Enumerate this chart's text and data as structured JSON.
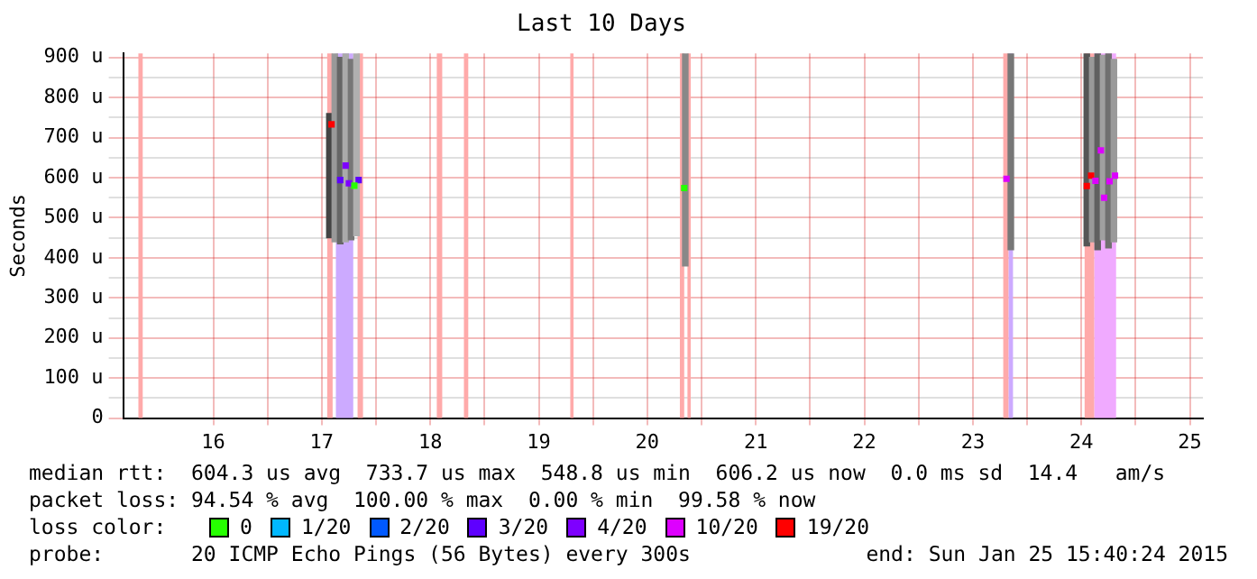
{
  "chart_data": {
    "type": "scatter",
    "title": "Last 10 Days",
    "ylabel": "Seconds",
    "legend_title": "loss color:",
    "legend": "bottom",
    "grid": true,
    "marker": "square",
    "xlim": [
      15.17,
      25.12
    ],
    "xticks": [
      16,
      {
        "value": 16.5,
        "label": null
      },
      17,
      {
        "value": 17.5,
        "label": null
      },
      18,
      {
        "value": 18.5,
        "label": null
      },
      19,
      {
        "value": 19.5,
        "label": null
      },
      20,
      {
        "value": 20.5,
        "label": null
      },
      21,
      {
        "value": 21.5,
        "label": null
      },
      22,
      {
        "value": 22.5,
        "label": null
      },
      23,
      {
        "value": 23.5,
        "label": null
      },
      24,
      {
        "value": 24.5,
        "label": null
      },
      25
    ],
    "ylim": [
      0,
      910
    ],
    "yticks": [
      {
        "value": 0,
        "label": "0"
      },
      {
        "value": 50,
        "label": null
      },
      {
        "value": 100,
        "label": "100 u"
      },
      {
        "value": 150,
        "label": null
      },
      {
        "value": 200,
        "label": "200 u"
      },
      {
        "value": 250,
        "label": null
      },
      {
        "value": 300,
        "label": "300 u"
      },
      {
        "value": 350,
        "label": null
      },
      {
        "value": 400,
        "label": "400 u"
      },
      {
        "value": 450,
        "label": null
      },
      {
        "value": 500,
        "label": "500 u"
      },
      {
        "value": 550,
        "label": null
      },
      {
        "value": 600,
        "label": "600 u"
      },
      {
        "value": 650,
        "label": null
      },
      {
        "value": 700,
        "label": "700 u"
      },
      {
        "value": 750,
        "label": null
      },
      {
        "value": 800,
        "label": "800 u"
      },
      {
        "value": 850,
        "label": null
      },
      {
        "value": 900,
        "label": "900 u"
      }
    ],
    "bands": [
      {
        "axis": "x",
        "from": 15.31,
        "to": 15.35,
        "color": "#ffaaaa"
      },
      {
        "axis": "x",
        "from": 17.05,
        "to": 17.1,
        "color": "#ffaaaa"
      },
      {
        "axis": "x",
        "from": 17.13,
        "to": 17.29,
        "color": "#ccaaff"
      },
      {
        "axis": "x",
        "from": 17.33,
        "to": 17.38,
        "color": "#ffaaaa"
      },
      {
        "axis": "x",
        "from": 18.06,
        "to": 18.11,
        "color": "#ffaaaa"
      },
      {
        "axis": "x",
        "from": 18.31,
        "to": 18.35,
        "color": "#ffaaaa"
      },
      {
        "axis": "x",
        "from": 19.29,
        "to": 19.32,
        "color": "#ffaaaa"
      },
      {
        "axis": "x",
        "from": 20.3,
        "to": 20.34,
        "color": "#ffaaaa"
      },
      {
        "axis": "x",
        "from": 20.37,
        "to": 20.4,
        "color": "#ffaaaa"
      },
      {
        "axis": "x",
        "from": 23.28,
        "to": 23.33,
        "color": "#ffaaaa"
      },
      {
        "axis": "x",
        "from": 23.33,
        "to": 23.37,
        "color": "#ccaaff"
      },
      {
        "axis": "x",
        "from": 24.03,
        "to": 24.12,
        "color": "#ffaaaa"
      },
      {
        "axis": "x",
        "from": 24.12,
        "to": 24.32,
        "color": "#f0aaff"
      }
    ],
    "series": [
      {
        "type": "bar",
        "colors": [
          "#444444",
          "#999999",
          "#666666",
          "#aaaaaa",
          "#777777",
          "#b0b0b0",
          "#888888",
          "#777777",
          "#555555",
          "#999999",
          "#606060",
          "#a0a0a0",
          "#707070",
          "#9a9a9a"
        ],
        "x": [
          17.07,
          17.12,
          17.17,
          17.22,
          17.27,
          17.32,
          20.35,
          23.35,
          24.05,
          24.1,
          24.15,
          24.2,
          24.25,
          24.3
        ],
        "base": [
          450,
          440,
          435,
          440,
          445,
          455,
          380,
          420,
          430,
          440,
          420,
          445,
          425,
          440
        ],
        "values": [
          310,
          470,
          465,
          470,
          450,
          455,
          530,
          490,
          480,
          460,
          490,
          460,
          485,
          455
        ]
      },
      {
        "name": "0",
        "color": "#26ff00",
        "x": [
          17.3,
          20.34
        ],
        "values": [
          580,
          574
        ]
      },
      {
        "name": "1/20",
        "color": "#00b8ff"
      },
      {
        "name": "2/20",
        "color": "#0059ff"
      },
      {
        "name": "3/20",
        "color": "#5e00ff",
        "x": [
          17.17,
          17.34
        ],
        "values": [
          594,
          594
        ]
      },
      {
        "name": "4/20",
        "color": "#7e00ff",
        "x": [
          17.22,
          17.25
        ],
        "values": [
          630,
          586
        ]
      },
      {
        "name": "10/20",
        "color": "#dd00ff",
        "x": [
          23.31,
          24.13,
          24.18,
          24.21,
          24.26,
          24.31
        ],
        "values": [
          597,
          592,
          668,
          550,
          591,
          605
        ]
      },
      {
        "name": "19/20",
        "color": "#ff0000",
        "x": [
          17.09,
          24.05,
          24.09
        ],
        "values": [
          733,
          579,
          605
        ]
      }
    ],
    "annotations": [
      "median rtt:  604.3 us avg  733.7 us max  548.8 us min  606.2 us now  0.0 ms sd  14.4   am/s",
      "packet loss: 94.54 % avg  100.00 % max  0.00 % min  99.58 % now",
      "probe:       20 ICMP Echo Pings (56 Bytes) every 300s",
      "end: Sun Jan 25 15:40:24 2015"
    ]
  }
}
